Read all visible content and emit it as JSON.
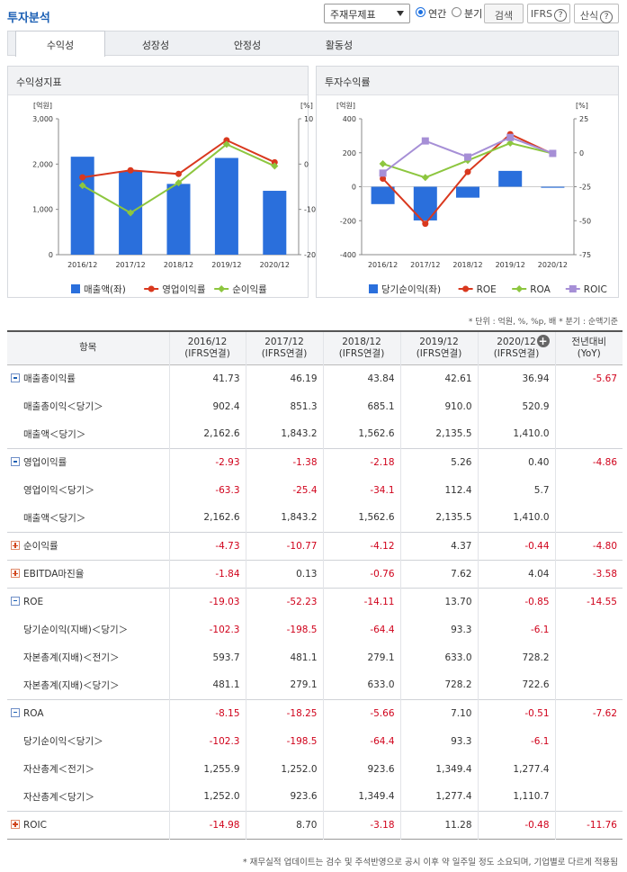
{
  "header": {
    "title": "투자분석",
    "select_value": "주재무제표",
    "radio_annual": "연간",
    "radio_quarter": "분기",
    "search_btn": "검색",
    "ifrs_btn": "IFRS",
    "formula_btn": "산식"
  },
  "colors": {
    "bar": "#2a6fdc",
    "op": "#d9381e",
    "net": "#8dc63f",
    "roa": "#8dc63f",
    "roic": "#a68fd6",
    "negative": "#d0021b"
  },
  "tabs": [
    "수익성",
    "성장성",
    "안정성",
    "활동성"
  ],
  "active_tab": 0,
  "panel_left": {
    "title": "수익성지표"
  },
  "panel_right": {
    "title": "투자수익률"
  },
  "chart_data": [
    {
      "type": "bar",
      "title": "수익성지표",
      "unit_left": "[억원]",
      "unit_right": "[%]",
      "categories": [
        "2016/12",
        "2017/12",
        "2018/12",
        "2019/12",
        "2020/12"
      ],
      "left_ticks": [
        "3,000",
        "2,000",
        "1,000",
        "0"
      ],
      "right_ticks": [
        "10",
        "0",
        "-10",
        "-20"
      ],
      "ylim_left": [
        0,
        3000
      ],
      "ylim_right": [
        -20,
        10
      ],
      "series": [
        {
          "name": "매출액(좌)",
          "type": "bar",
          "axis": "left",
          "values": [
            2162.6,
            1843.2,
            1562.6,
            2135.5,
            1410.0
          ]
        },
        {
          "name": "영업이익률",
          "type": "line",
          "axis": "right",
          "values": [
            -2.93,
            -1.38,
            -2.18,
            5.26,
            0.4
          ]
        },
        {
          "name": "순이익률",
          "type": "line",
          "axis": "right",
          "values": [
            -4.73,
            -10.77,
            -4.12,
            4.37,
            -0.44
          ]
        }
      ]
    },
    {
      "type": "bar",
      "title": "투자수익률",
      "unit_left": "[억원]",
      "unit_right": "[%]",
      "categories": [
        "2016/12",
        "2017/12",
        "2018/12",
        "2019/12",
        "2020/12"
      ],
      "left_ticks": [
        "400",
        "200",
        "0",
        "-200",
        "-400"
      ],
      "right_ticks": [
        "25",
        "0",
        "-25",
        "-50",
        "-75"
      ],
      "ylim_left": [
        -400,
        400
      ],
      "ylim_right": [
        -75,
        25
      ],
      "series": [
        {
          "name": "당기순이익(좌)",
          "type": "bar",
          "axis": "left",
          "values": [
            -102.3,
            -198.5,
            -64.4,
            93.3,
            -6.1
          ]
        },
        {
          "name": "ROE",
          "type": "line",
          "axis": "right",
          "values": [
            -19.03,
            -52.23,
            -14.11,
            13.7,
            -0.85
          ]
        },
        {
          "name": "ROA",
          "type": "line",
          "axis": "right",
          "values": [
            -8.15,
            -18.25,
            -5.66,
            7.1,
            -0.51
          ]
        },
        {
          "name": "ROIC",
          "type": "line",
          "axis": "right",
          "values": [
            -14.98,
            8.7,
            -3.18,
            11.28,
            -0.48
          ]
        }
      ]
    }
  ],
  "note": "* 단위 : 억원, %, %p, 배   * 분기 : 순액기준",
  "table": {
    "headers": [
      {
        "a": "항목",
        "b": ""
      },
      {
        "a": "2016/12",
        "b": "(IFRS연결)"
      },
      {
        "a": "2017/12",
        "b": "(IFRS연결)"
      },
      {
        "a": "2018/12",
        "b": "(IFRS연결)"
      },
      {
        "a": "2019/12",
        "b": "(IFRS연결)"
      },
      {
        "a": "2020/12",
        "b": "(IFRS연결)"
      },
      {
        "a": "전년대비",
        "b": "(YoY)"
      }
    ],
    "rows": [
      {
        "label": "매출총이익률",
        "kind": "minus",
        "vals": [
          "41.73",
          "46.19",
          "43.84",
          "42.61",
          "36.94",
          "-5.67"
        ]
      },
      {
        "label": "매출총이익＜당기＞",
        "kind": "sub",
        "vals": [
          "902.4",
          "851.3",
          "685.1",
          "910.0",
          "520.9",
          ""
        ]
      },
      {
        "label": "매출액＜당기＞",
        "kind": "sub",
        "vals": [
          "2,162.6",
          "1,843.2",
          "1,562.6",
          "2,135.5",
          "1,410.0",
          ""
        ]
      },
      {
        "label": "영업이익률",
        "kind": "minus",
        "vals": [
          "-2.93",
          "-1.38",
          "-2.18",
          "5.26",
          "0.40",
          "-4.86"
        ]
      },
      {
        "label": "영업이익＜당기＞",
        "kind": "sub",
        "vals": [
          "-63.3",
          "-25.4",
          "-34.1",
          "112.4",
          "5.7",
          ""
        ]
      },
      {
        "label": "매출액＜당기＞",
        "kind": "sub",
        "vals": [
          "2,162.6",
          "1,843.2",
          "1,562.6",
          "2,135.5",
          "1,410.0",
          ""
        ]
      },
      {
        "label": "순이익률",
        "kind": "plus",
        "vals": [
          "-4.73",
          "-10.77",
          "-4.12",
          "4.37",
          "-0.44",
          "-4.80"
        ]
      },
      {
        "label": "EBITDA마진율",
        "kind": "plus",
        "vals": [
          "-1.84",
          "0.13",
          "-0.76",
          "7.62",
          "4.04",
          "-3.58"
        ]
      },
      {
        "label": "ROE",
        "kind": "minus",
        "vals": [
          "-19.03",
          "-52.23",
          "-14.11",
          "13.70",
          "-0.85",
          "-14.55"
        ]
      },
      {
        "label": "당기순이익(지배)＜당기＞",
        "kind": "sub",
        "vals": [
          "-102.3",
          "-198.5",
          "-64.4",
          "93.3",
          "-6.1",
          ""
        ]
      },
      {
        "label": "자본총계(지배)＜전기＞",
        "kind": "sub",
        "vals": [
          "593.7",
          "481.1",
          "279.1",
          "633.0",
          "728.2",
          ""
        ]
      },
      {
        "label": "자본총계(지배)＜당기＞",
        "kind": "sub",
        "vals": [
          "481.1",
          "279.1",
          "633.0",
          "728.2",
          "722.6",
          ""
        ]
      },
      {
        "label": "ROA",
        "kind": "minus",
        "vals": [
          "-8.15",
          "-18.25",
          "-5.66",
          "7.10",
          "-0.51",
          "-7.62"
        ]
      },
      {
        "label": "당기순이익＜당기＞",
        "kind": "sub",
        "vals": [
          "-102.3",
          "-198.5",
          "-64.4",
          "93.3",
          "-6.1",
          ""
        ]
      },
      {
        "label": "자산총계＜전기＞",
        "kind": "sub",
        "vals": [
          "1,255.9",
          "1,252.0",
          "923.6",
          "1,349.4",
          "1,277.4",
          ""
        ]
      },
      {
        "label": "자산총계＜당기＞",
        "kind": "sub",
        "vals": [
          "1,252.0",
          "923.6",
          "1,349.4",
          "1,277.4",
          "1,110.7",
          ""
        ]
      },
      {
        "label": "ROIC",
        "kind": "plus",
        "vals": [
          "-14.98",
          "8.70",
          "-3.18",
          "11.28",
          "-0.48",
          "-11.76"
        ]
      }
    ]
  },
  "footer": "* 재무실적 업데이트는 검수 및 주석반영으로 공시 이후 약 일주일 정도 소요되며, 기업별로 다르게 적용됨"
}
